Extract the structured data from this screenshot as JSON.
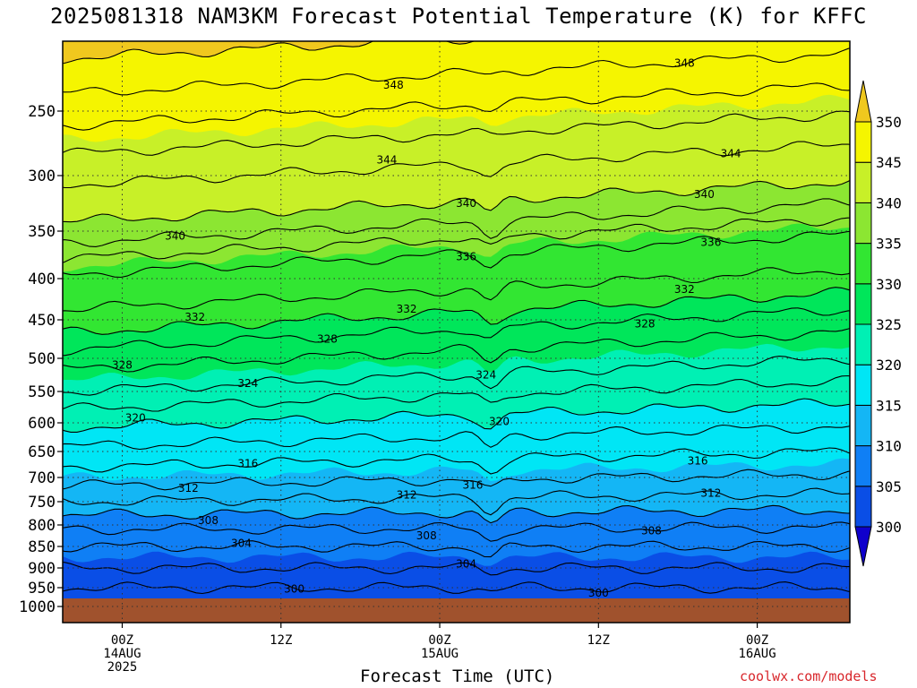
{
  "chart_data": {
    "type": "heatmap",
    "title": "2025081318 NAM3KM Forecast Potential Temperature (K) for KFFC",
    "xlabel": "Forecast Time (UTC)",
    "ylabel": "",
    "credit": "coolwx.com/models",
    "x_range_hours": [
      -4.5,
      55
    ],
    "pressure_range_hpa": [
      200,
      1000
    ],
    "y_ticks": [
      250,
      300,
      350,
      400,
      450,
      500,
      550,
      600,
      650,
      700,
      750,
      800,
      850,
      900,
      950,
      1000
    ],
    "x_ticks": [
      {
        "hour": 0,
        "lines": [
          "00Z",
          "14AUG",
          "2025"
        ]
      },
      {
        "hour": 12,
        "lines": [
          "12Z"
        ]
      },
      {
        "hour": 24,
        "lines": [
          "00Z",
          "15AUG"
        ]
      },
      {
        "hour": 36,
        "lines": [
          "12Z"
        ]
      },
      {
        "hour": 48,
        "lines": [
          "00Z",
          "16AUG"
        ]
      }
    ],
    "grid": "dotted",
    "colorbar": {
      "levels": [
        300,
        305,
        310,
        315,
        320,
        325,
        330,
        335,
        340,
        345,
        350
      ],
      "labels": [
        "300",
        "305",
        "310",
        "315",
        "320",
        "325",
        "330",
        "335",
        "340",
        "345",
        "350"
      ],
      "colors": [
        "#0f00cc",
        "#0a4ee6",
        "#0f7ff5",
        "#14b6f5",
        "#00e6f5",
        "#00f0b4",
        "#00e65a",
        "#32e632",
        "#8ce632",
        "#c8f028",
        "#f5f500",
        "#f0c81e"
      ],
      "placement": "right"
    },
    "contour_labels": [
      {
        "value": "348",
        "hour": 20.5,
        "p": 230
      },
      {
        "value": "348",
        "hour": 42.5,
        "p": 213
      },
      {
        "value": "344",
        "hour": 20,
        "p": 288
      },
      {
        "value": "344",
        "hour": 46,
        "p": 283
      },
      {
        "value": "340",
        "hour": 26,
        "p": 325
      },
      {
        "value": "340",
        "hour": 44,
        "p": 317
      },
      {
        "value": "340",
        "hour": 4,
        "p": 355
      },
      {
        "value": "336",
        "hour": 26,
        "p": 377
      },
      {
        "value": "336",
        "hour": 44.5,
        "p": 362
      },
      {
        "value": "332",
        "hour": 5.5,
        "p": 447
      },
      {
        "value": "332",
        "hour": 21.5,
        "p": 437
      },
      {
        "value": "332",
        "hour": 42.5,
        "p": 413
      },
      {
        "value": "328",
        "hour": 15.5,
        "p": 475
      },
      {
        "value": "328",
        "hour": 0,
        "p": 510
      },
      {
        "value": "328",
        "hour": 39.5,
        "p": 455
      },
      {
        "value": "324",
        "hour": 9.5,
        "p": 538
      },
      {
        "value": "324",
        "hour": 27.5,
        "p": 525
      },
      {
        "value": "320",
        "hour": 1,
        "p": 592
      },
      {
        "value": "320",
        "hour": 28.5,
        "p": 598
      },
      {
        "value": "316",
        "hour": 9.5,
        "p": 673
      },
      {
        "value": "316",
        "hour": 43.5,
        "p": 668
      },
      {
        "value": "316",
        "hour": 26.5,
        "p": 716
      },
      {
        "value": "312",
        "hour": 5,
        "p": 722
      },
      {
        "value": "312",
        "hour": 21.5,
        "p": 736
      },
      {
        "value": "312",
        "hour": 44.5,
        "p": 732
      },
      {
        "value": "308",
        "hour": 6.5,
        "p": 790
      },
      {
        "value": "308",
        "hour": 23,
        "p": 825
      },
      {
        "value": "308",
        "hour": 40,
        "p": 814
      },
      {
        "value": "304",
        "hour": 9,
        "p": 843
      },
      {
        "value": "304",
        "hour": 26,
        "p": 891
      },
      {
        "value": "300",
        "hour": 13,
        "p": 954
      },
      {
        "value": "300",
        "hour": 36,
        "p": 964
      }
    ]
  }
}
